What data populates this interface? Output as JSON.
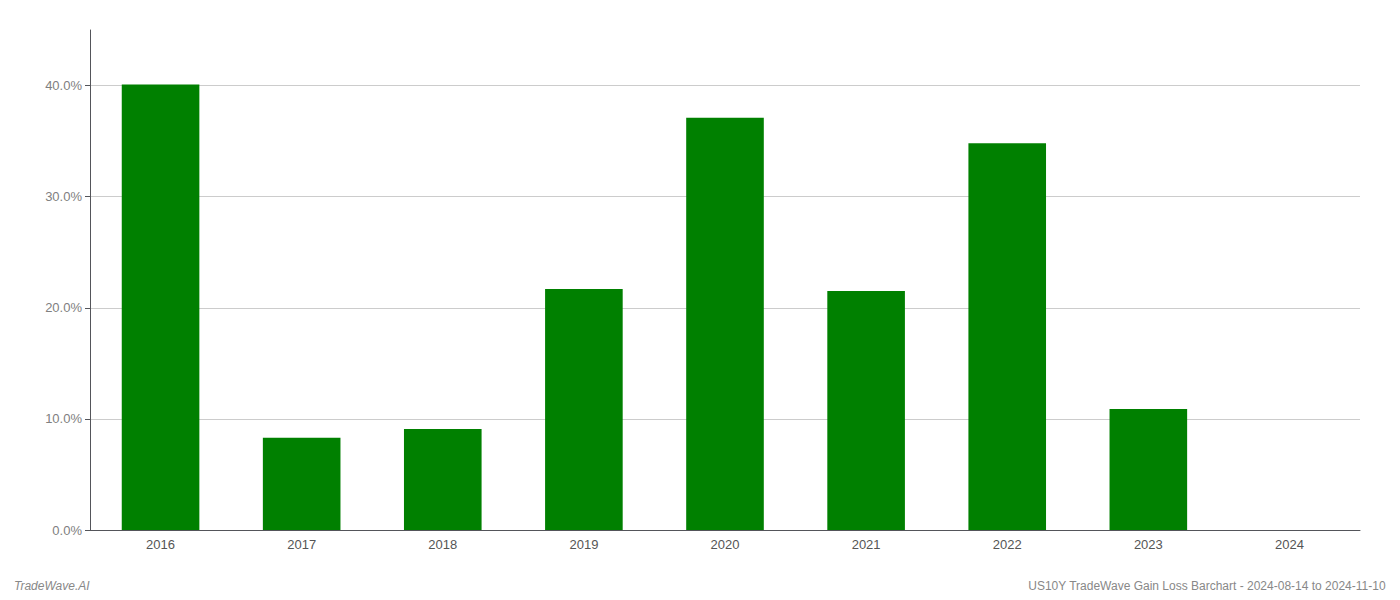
{
  "chart_data": {
    "type": "bar",
    "categories": [
      "2016",
      "2017",
      "2018",
      "2019",
      "2020",
      "2021",
      "2022",
      "2023",
      "2024"
    ],
    "values": [
      0.401,
      0.083,
      0.091,
      0.217,
      0.371,
      0.215,
      0.348,
      0.109,
      0.0
    ],
    "color": "#008000",
    "ylim": [
      0,
      0.45
    ],
    "yticks": [
      {
        "value": 0.0,
        "label": "0.0%"
      },
      {
        "value": 0.1,
        "label": "10.0%"
      },
      {
        "value": 0.2,
        "label": "20.0%"
      },
      {
        "value": 0.3,
        "label": "30.0%"
      },
      {
        "value": 0.4,
        "label": "40.0%"
      }
    ],
    "grid": true,
    "annotations": [
      "TradeWave.AI",
      "US10Y TradeWave Gain Loss Barchart - 2024-08-14 to 2024-11-10"
    ]
  }
}
